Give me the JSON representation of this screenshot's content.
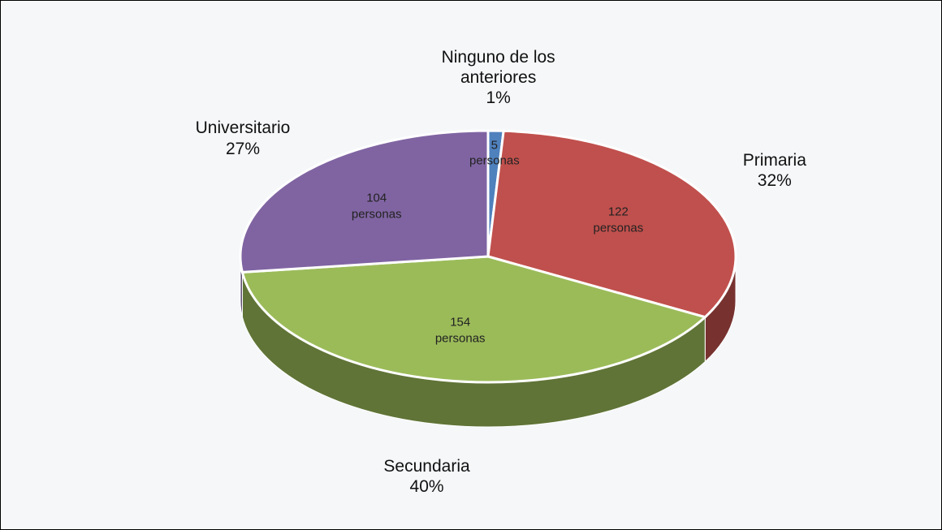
{
  "chart_data": {
    "type": "pie",
    "categories": [
      "Ninguno de los anteriores",
      "Primaria",
      "Secundaria",
      "Universitario"
    ],
    "values": [
      1,
      32,
      40,
      27
    ],
    "value_labels": [
      "1%",
      "32%",
      "40%",
      "27%"
    ],
    "counts": [
      5,
      122,
      154,
      104
    ],
    "count_unit": "personas",
    "colors": [
      "#4f81bd",
      "#c0504d",
      "#9bbb59",
      "#8064a2"
    ]
  }
}
